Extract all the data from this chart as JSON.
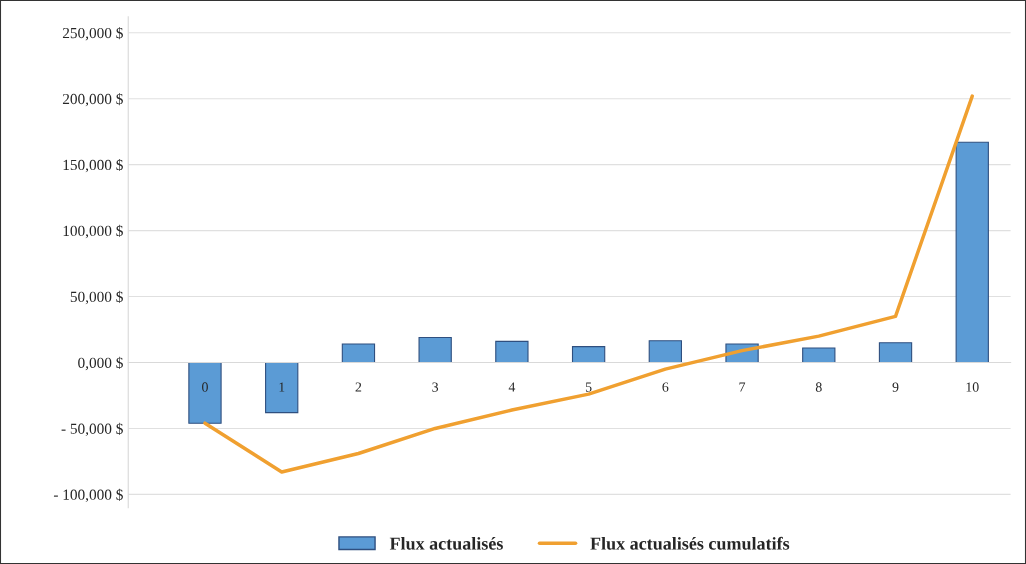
{
  "chart_data": {
    "type": "bar",
    "categories": [
      "0",
      "1",
      "2",
      "3",
      "4",
      "5",
      "6",
      "7",
      "8",
      "9",
      "10"
    ],
    "series": [
      {
        "name": "Flux actualisés",
        "color": "#5b9bd5",
        "values": [
          -46000,
          -38000,
          14000,
          19000,
          16000,
          12000,
          16500,
          14000,
          11000,
          15000,
          167000
        ]
      },
      {
        "name": "Flux actualisés cumulatifs",
        "type": "line",
        "color": "#f0a030",
        "values": [
          -46000,
          -83000,
          -69000,
          -50000,
          -36000,
          -24000,
          -5000,
          9000,
          20000,
          35000,
          202000
        ]
      }
    ],
    "ylim": [
      -110000,
      262000
    ],
    "yticks": [
      {
        "value": -100000,
        "label": "- 100,000 $"
      },
      {
        "value": -50000,
        "label": "- 50,000 $"
      },
      {
        "value": 0,
        "label": "0,000 $"
      },
      {
        "value": 50000,
        "label": "50,000 $"
      },
      {
        "value": 100000,
        "label": "100,000 $"
      },
      {
        "value": 150000,
        "label": "150,000 $"
      },
      {
        "value": 200000,
        "label": "200,000 $"
      },
      {
        "value": 250000,
        "label": "250,000 $"
      }
    ],
    "grid": "y",
    "legend": "bottom",
    "marker": "none",
    "line_style": "solid"
  }
}
